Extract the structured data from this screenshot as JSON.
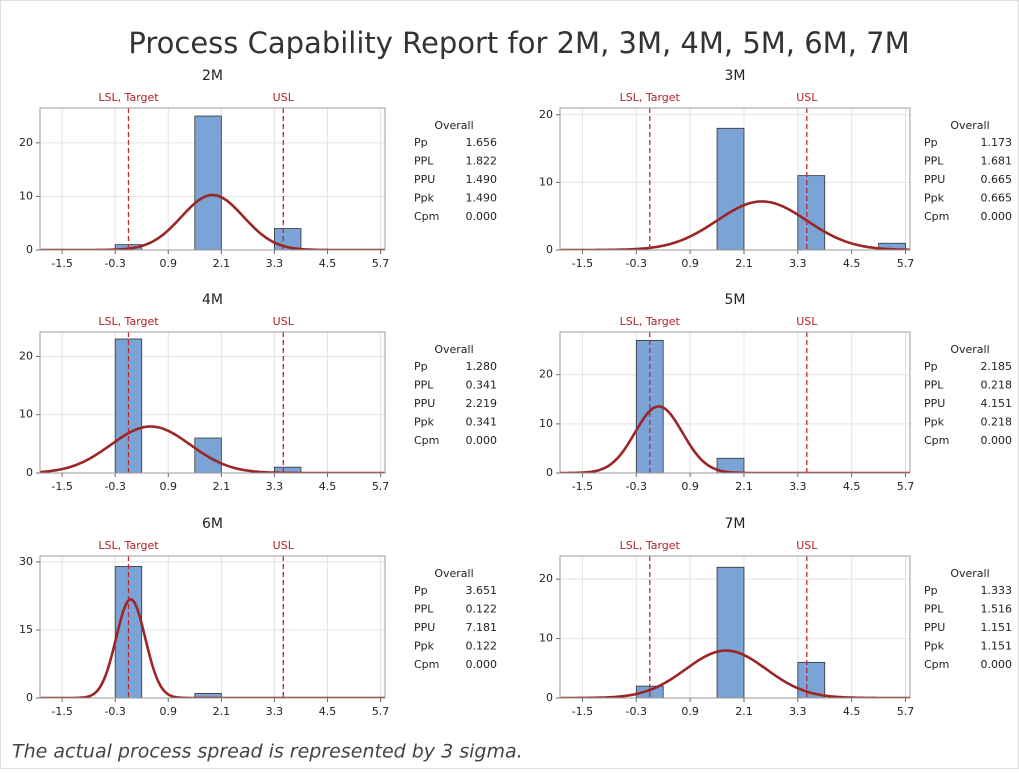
{
  "title": "Process Capability Report for 2M, 3M, 4M, 5M, 6M, 7M",
  "footnote": "The actual process spread is represented by 3 sigma.",
  "chart_data": [
    {
      "type": "histogram",
      "title": "2M",
      "bins": [
        -0.3,
        0.3,
        0.9,
        1.5,
        2.1,
        2.7,
        3.3,
        3.9,
        4.5,
        5.1,
        5.7
      ],
      "values": [
        1,
        0,
        0,
        25,
        0,
        0,
        4,
        0,
        0,
        0
      ],
      "color": "#7ba3d6",
      "xlim": [
        -2.0,
        5.8
      ],
      "xticks": [
        -1.5,
        -0.3,
        0.9,
        2.1,
        3.3,
        4.5,
        5.7
      ],
      "ylim": [
        0,
        26.5
      ],
      "yticks": [
        0,
        10,
        20
      ],
      "grid": true,
      "spec_lines": [
        {
          "label": "LSL, Target",
          "value": 0
        },
        {
          "label": "USL",
          "value": 3.5
        }
      ],
      "fit": {
        "mean": 1.9,
        "sd": 0.7,
        "color": "#9b2626"
      },
      "stats": {
        "header": "Overall",
        "rows": [
          {
            "label": "Pp",
            "value": "1.656"
          },
          {
            "label": "PPL",
            "value": "1.822"
          },
          {
            "label": "PPU",
            "value": "1.490"
          },
          {
            "label": "Ppk",
            "value": "1.490"
          },
          {
            "label": "Cpm",
            "value": "0.000"
          }
        ]
      }
    },
    {
      "type": "histogram",
      "title": "3M",
      "bins": [
        -0.3,
        0.3,
        0.9,
        1.5,
        2.1,
        2.7,
        3.3,
        3.9,
        4.5,
        5.1,
        5.7
      ],
      "values": [
        0,
        0,
        0,
        18,
        0,
        0,
        11,
        0,
        0,
        1
      ],
      "color": "#7ba3d6",
      "xlim": [
        -2.0,
        5.8
      ],
      "xticks": [
        -1.5,
        -0.3,
        0.9,
        2.1,
        3.3,
        4.5,
        5.7
      ],
      "ylim": [
        0,
        21
      ],
      "yticks": [
        0,
        10,
        20
      ],
      "grid": true,
      "spec_lines": [
        {
          "label": "LSL, Target",
          "value": 0
        },
        {
          "label": "USL",
          "value": 3.5
        }
      ],
      "fit": {
        "mean": 2.5,
        "sd": 1.0,
        "color": "#9b2626"
      },
      "stats": {
        "header": "Overall",
        "rows": [
          {
            "label": "Pp",
            "value": "1.173"
          },
          {
            "label": "PPL",
            "value": "1.681"
          },
          {
            "label": "PPU",
            "value": "0.665"
          },
          {
            "label": "Ppk",
            "value": "0.665"
          },
          {
            "label": "Cpm",
            "value": "0.000"
          }
        ]
      }
    },
    {
      "type": "histogram",
      "title": "4M",
      "bins": [
        -0.3,
        0.3,
        0.9,
        1.5,
        2.1,
        2.7,
        3.3,
        3.9,
        4.5,
        5.1,
        5.7
      ],
      "values": [
        23,
        0,
        0,
        6,
        0,
        0,
        1,
        0,
        0,
        0
      ],
      "color": "#7ba3d6",
      "xlim": [
        -2.0,
        5.8
      ],
      "xticks": [
        -1.5,
        -0.3,
        0.9,
        2.1,
        3.3,
        4.5,
        5.7
      ],
      "ylim": [
        0,
        24.2
      ],
      "yticks": [
        0,
        10,
        20
      ],
      "grid": true,
      "spec_lines": [
        {
          "label": "LSL, Target",
          "value": 0
        },
        {
          "label": "USL",
          "value": 3.5
        }
      ],
      "fit": {
        "mean": 0.5,
        "sd": 0.9,
        "color": "#9b2626"
      },
      "stats": {
        "header": "Overall",
        "rows": [
          {
            "label": "Pp",
            "value": "1.280"
          },
          {
            "label": "PPL",
            "value": "0.341"
          },
          {
            "label": "PPU",
            "value": "2.219"
          },
          {
            "label": "Ppk",
            "value": "0.341"
          },
          {
            "label": "Cpm",
            "value": "0.000"
          }
        ]
      }
    },
    {
      "type": "histogram",
      "title": "5M",
      "bins": [
        -0.3,
        0.3,
        0.9,
        1.5,
        2.1,
        2.7,
        3.3,
        3.9,
        4.5,
        5.1,
        5.7
      ],
      "values": [
        27,
        0,
        0,
        3,
        0,
        0,
        0,
        0,
        0,
        0
      ],
      "color": "#7ba3d6",
      "xlim": [
        -2.0,
        5.8
      ],
      "xticks": [
        -1.5,
        -0.3,
        0.9,
        2.1,
        3.3,
        4.5,
        5.7
      ],
      "ylim": [
        0,
        28.7
      ],
      "yticks": [
        0,
        10,
        20
      ],
      "grid": true,
      "spec_lines": [
        {
          "label": "LSL, Target",
          "value": 0
        },
        {
          "label": "USL",
          "value": 3.5
        }
      ],
      "fit": {
        "mean": 0.2,
        "sd": 0.53,
        "color": "#9b2626"
      },
      "stats": {
        "header": "Overall",
        "rows": [
          {
            "label": "Pp",
            "value": "2.185"
          },
          {
            "label": "PPL",
            "value": "0.218"
          },
          {
            "label": "PPU",
            "value": "4.151"
          },
          {
            "label": "Ppk",
            "value": "0.218"
          },
          {
            "label": "Cpm",
            "value": "0.000"
          }
        ]
      }
    },
    {
      "type": "histogram",
      "title": "6M",
      "bins": [
        -0.3,
        0.3,
        0.9,
        1.5,
        2.1,
        2.7,
        3.3,
        3.9,
        4.5,
        5.1,
        5.7
      ],
      "values": [
        29,
        0,
        0,
        1,
        0,
        0,
        0,
        0,
        0,
        0
      ],
      "color": "#7ba3d6",
      "xlim": [
        -2.0,
        5.8
      ],
      "xticks": [
        -1.5,
        -0.3,
        0.9,
        2.1,
        3.3,
        4.5,
        5.7
      ],
      "ylim": [
        0,
        31.3
      ],
      "yticks": [
        0,
        15,
        30
      ],
      "grid": true,
      "spec_lines": [
        {
          "label": "LSL, Target",
          "value": 0
        },
        {
          "label": "USL",
          "value": 3.5
        }
      ],
      "fit": {
        "mean": 0.05,
        "sd": 0.33,
        "color": "#9b2626"
      },
      "stats": {
        "header": "Overall",
        "rows": [
          {
            "label": "Pp",
            "value": "3.651"
          },
          {
            "label": "PPL",
            "value": "0.122"
          },
          {
            "label": "PPU",
            "value": "7.181"
          },
          {
            "label": "Ppk",
            "value": "0.122"
          },
          {
            "label": "Cpm",
            "value": "0.000"
          }
        ]
      }
    },
    {
      "type": "histogram",
      "title": "7M",
      "bins": [
        -0.3,
        0.3,
        0.9,
        1.5,
        2.1,
        2.7,
        3.3,
        3.9,
        4.5,
        5.1,
        5.7
      ],
      "values": [
        2,
        0,
        0,
        22,
        0,
        0,
        6,
        0,
        0,
        0
      ],
      "color": "#7ba3d6",
      "xlim": [
        -2.0,
        5.8
      ],
      "xticks": [
        -1.5,
        -0.3,
        0.9,
        2.1,
        3.3,
        4.5,
        5.7
      ],
      "ylim": [
        0,
        23.9
      ],
      "yticks": [
        0,
        10,
        20
      ],
      "grid": true,
      "spec_lines": [
        {
          "label": "LSL, Target",
          "value": 0
        },
        {
          "label": "USL",
          "value": 3.5
        }
      ],
      "fit": {
        "mean": 1.7,
        "sd": 0.9,
        "color": "#9b2626"
      },
      "stats": {
        "header": "Overall",
        "rows": [
          {
            "label": "Pp",
            "value": "1.333"
          },
          {
            "label": "PPL",
            "value": "1.516"
          },
          {
            "label": "PPU",
            "value": "1.151"
          },
          {
            "label": "Ppk",
            "value": "1.151"
          },
          {
            "label": "Cpm",
            "value": "0.000"
          }
        ]
      }
    }
  ]
}
